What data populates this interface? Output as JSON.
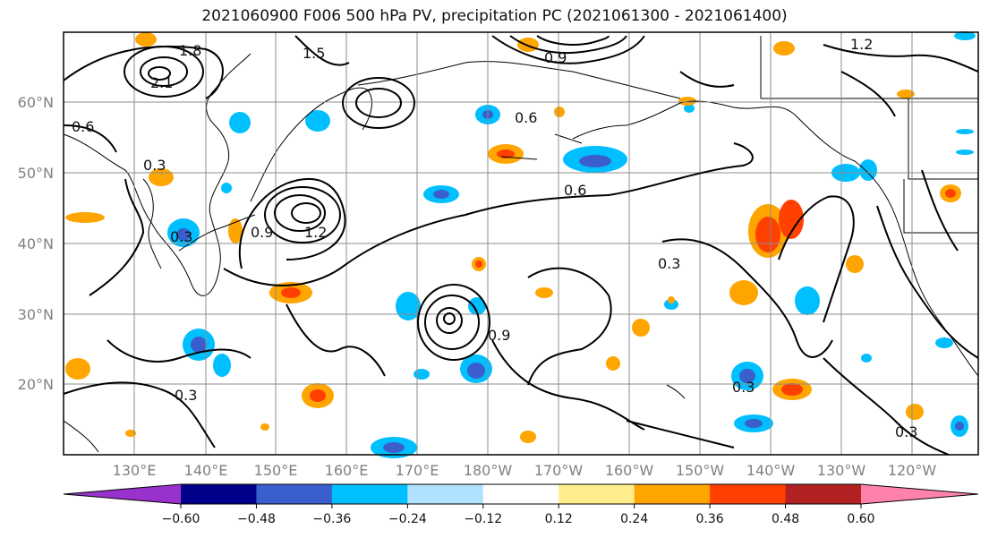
{
  "title": "2021060900 F006 500 hPa PV, precipitation PC (2021061300 - 2021061400)",
  "map": {
    "lat_labels": [
      "60°N",
      "50°N",
      "40°N",
      "30°N",
      "20°N"
    ],
    "lon_labels": [
      "130°E",
      "140°E",
      "150°E",
      "160°E",
      "170°E",
      "180°W",
      "170°W",
      "160°W",
      "150°W",
      "140°W",
      "130°W",
      "120°W"
    ],
    "contour_labels": [
      "0.6",
      "0.3",
      "0.9",
      "1.2",
      "1.5",
      "1.8",
      "2.1",
      "0.6",
      "0.3",
      "0.9",
      "0.6",
      "0.3",
      "0.3",
      "0.9",
      "1.2",
      "0.3",
      "0.3"
    ]
  },
  "colorbar": {
    "ticks": [
      "−0.60",
      "−0.48",
      "−0.36",
      "−0.24",
      "−0.12",
      "0.12",
      "0.24",
      "0.36",
      "0.48",
      "0.60"
    ],
    "colors": [
      "#9932cc",
      "#00008b",
      "#3a5fcd",
      "#00bfff",
      "#b0e2ff",
      "#ffffff",
      "#ffec8b",
      "#ffa500",
      "#ff4000",
      "#b22222",
      "#ff82ab"
    ]
  }
}
